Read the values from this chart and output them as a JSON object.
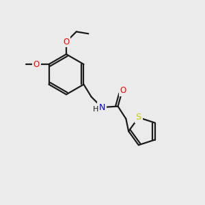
{
  "bg_color": "#ebebeb",
  "bond_color": "#1a1a1a",
  "atom_colors": {
    "O": "#ff0000",
    "N": "#0000cd",
    "S": "#cccc00",
    "C": "#1a1a1a"
  },
  "line_width": 1.6,
  "font_size": 8.5
}
